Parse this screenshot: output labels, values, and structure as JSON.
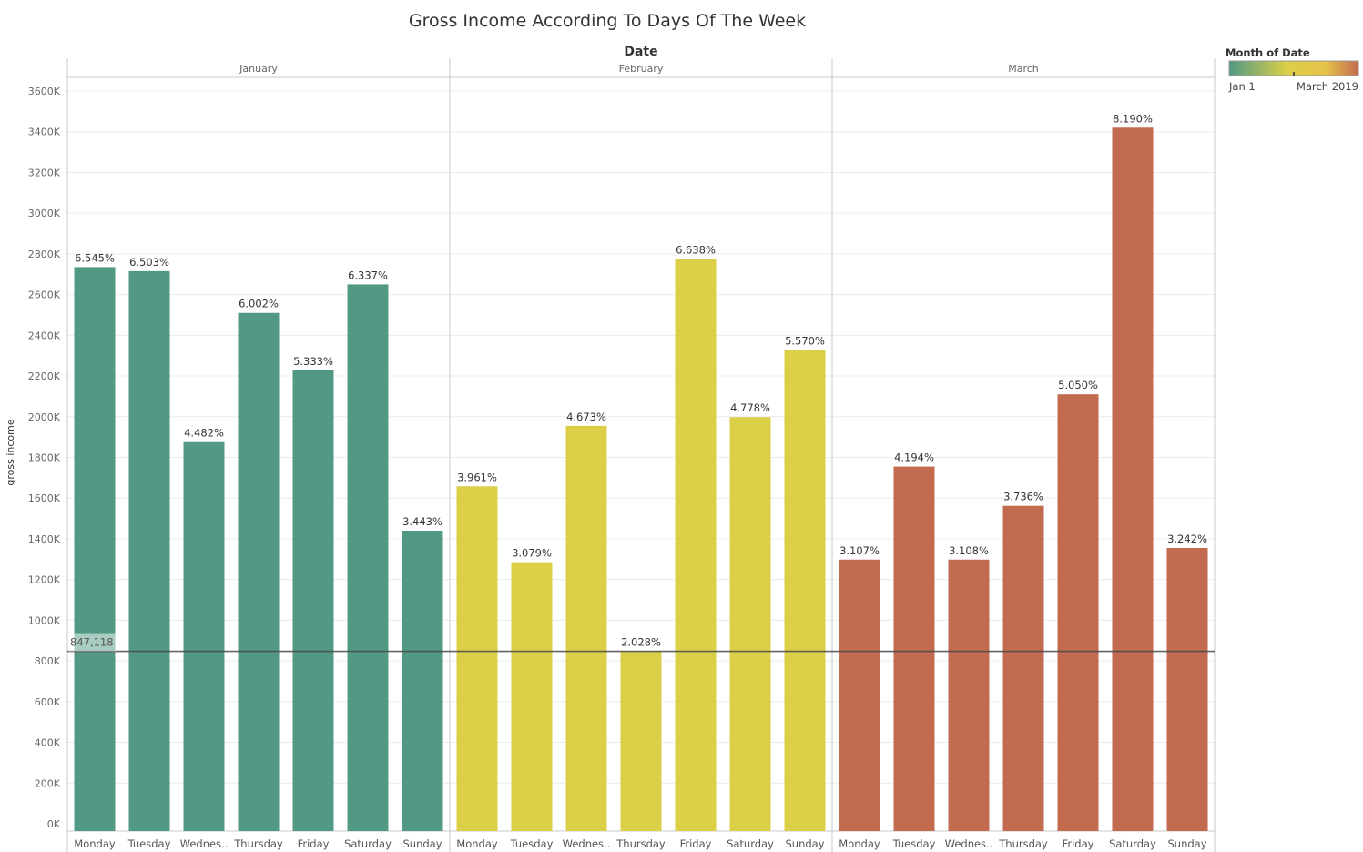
{
  "chart_data": {
    "type": "bar",
    "title": "Gross Income According To Days Of The Week",
    "column_header": "Date",
    "ylabel": "gross income",
    "ylim": [
      0,
      3650000
    ],
    "yticks": [
      {
        "value": 0,
        "label": "0K"
      },
      {
        "value": 200000,
        "label": "200K"
      },
      {
        "value": 400000,
        "label": "400K"
      },
      {
        "value": 600000,
        "label": "600K"
      },
      {
        "value": 800000,
        "label": "800K"
      },
      {
        "value": 1000000,
        "label": "1000K"
      },
      {
        "value": 1200000,
        "label": "1200K"
      },
      {
        "value": 1400000,
        "label": "1400K"
      },
      {
        "value": 1600000,
        "label": "1600K"
      },
      {
        "value": 1800000,
        "label": "1800K"
      },
      {
        "value": 2000000,
        "label": "2000K"
      },
      {
        "value": 2200000,
        "label": "2200K"
      },
      {
        "value": 2400000,
        "label": "2400K"
      },
      {
        "value": 2600000,
        "label": "2600K"
      },
      {
        "value": 2800000,
        "label": "2800K"
      },
      {
        "value": 3000000,
        "label": "3000K"
      },
      {
        "value": 3200000,
        "label": "3200K"
      },
      {
        "value": 3400000,
        "label": "3400K"
      },
      {
        "value": 3600000,
        "label": "3600K"
      }
    ],
    "grid": true,
    "reference_line": {
      "value": 847118,
      "label": "847,118"
    },
    "panels": [
      {
        "name": "January",
        "color": "#529985",
        "categories": [
          "Monday",
          "Tuesday",
          "Wednes..",
          "Thursday",
          "Friday",
          "Saturday",
          "Sunday"
        ],
        "values": [
          2735000,
          2715000,
          1875000,
          2510000,
          2228000,
          2650000,
          1440000
        ],
        "labels": [
          "6.545%",
          "6.503%",
          "4.482%",
          "6.002%",
          "5.333%",
          "6.337%",
          "3.443%"
        ]
      },
      {
        "name": "February",
        "color": "#dbcf47",
        "categories": [
          "Monday",
          "Tuesday",
          "Wednes..",
          "Thursday",
          "Friday",
          "Saturday",
          "Sunday"
        ],
        "values": [
          1658000,
          1285000,
          1955000,
          848000,
          2775000,
          1998000,
          2328000
        ],
        "labels": [
          "3.961%",
          "3.079%",
          "4.673%",
          "2.028%",
          "6.638%",
          "4.778%",
          "5.570%"
        ]
      },
      {
        "name": "March",
        "color": "#c26b4f",
        "categories": [
          "Monday",
          "Tuesday",
          "Wednes..",
          "Thursday",
          "Friday",
          "Saturday",
          "Sunday"
        ],
        "values": [
          1298000,
          1755000,
          1298000,
          1562000,
          2110000,
          3420000,
          1355000
        ],
        "labels": [
          "3.107%",
          "4.194%",
          "3.108%",
          "3.736%",
          "5.050%",
          "8.190%",
          "3.242%"
        ]
      }
    ],
    "legend": {
      "title": "Month of Date",
      "start_label": "Jan 1",
      "end_label": "March 2019",
      "placement": "top-right",
      "gradient_colors": [
        "#529985",
        "#dbcf47",
        "#e6c24a",
        "#c26b4f"
      ]
    }
  }
}
